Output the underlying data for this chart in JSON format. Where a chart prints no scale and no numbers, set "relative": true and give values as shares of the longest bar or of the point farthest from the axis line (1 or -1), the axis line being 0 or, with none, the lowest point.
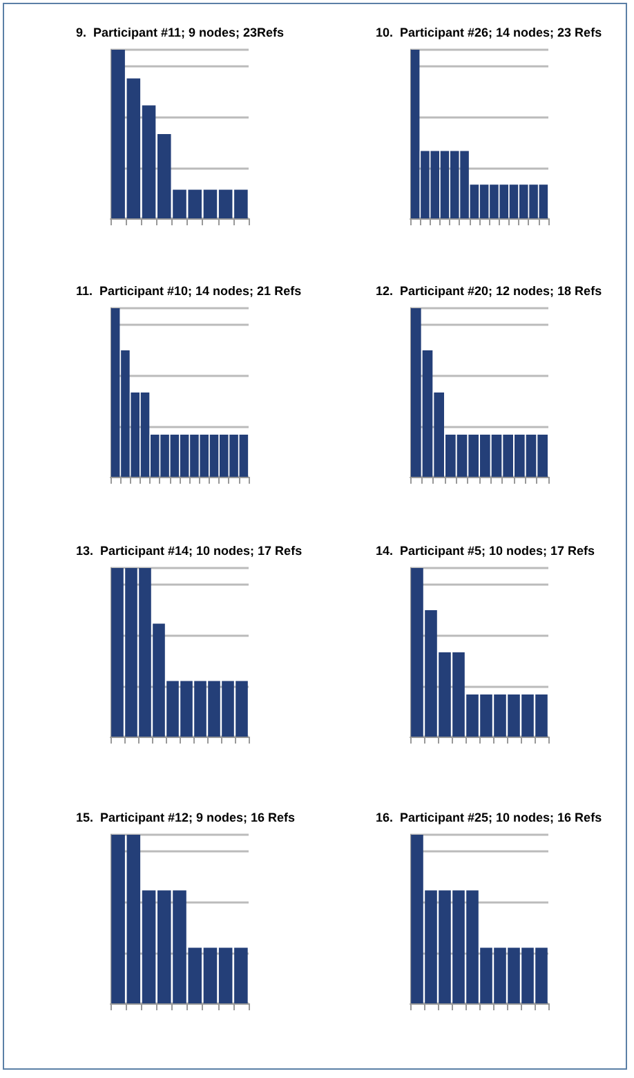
{
  "chart_data": [
    {
      "type": "bar",
      "title": "9.  Participant #11; 9 nodes; 23Refs",
      "relative": true,
      "grid": "y",
      "color": "#243f78",
      "categories": [
        null,
        null,
        null,
        null,
        null,
        null,
        null,
        null,
        null
      ],
      "values": [
        1,
        0.83,
        0.67,
        0.5,
        0.17,
        0.17,
        0.17,
        0.17,
        0.17
      ]
    },
    {
      "type": "bar",
      "title": "10.  Participant #26; 14 nodes; 23 Refs",
      "relative": true,
      "grid": "y",
      "color": "#243f78",
      "categories": [
        null,
        null,
        null,
        null,
        null,
        null,
        null,
        null,
        null,
        null,
        null,
        null,
        null,
        null
      ],
      "values": [
        1,
        0.4,
        0.4,
        0.4,
        0.4,
        0.4,
        0.2,
        0.2,
        0.2,
        0.2,
        0.2,
        0.2,
        0.2,
        0.2
      ]
    },
    {
      "type": "bar",
      "title": "11.  Participant #10; 14 nodes; 21 Refs",
      "relative": true,
      "grid": "y",
      "color": "#243f78",
      "categories": [
        null,
        null,
        null,
        null,
        null,
        null,
        null,
        null,
        null,
        null,
        null,
        null,
        null,
        null
      ],
      "values": [
        1,
        0.75,
        0.5,
        0.5,
        0.25,
        0.25,
        0.25,
        0.25,
        0.25,
        0.25,
        0.25,
        0.25,
        0.25,
        0.25
      ]
    },
    {
      "type": "bar",
      "title": "12.  Participant #20; 12 nodes; 18 Refs",
      "relative": true,
      "grid": "y",
      "color": "#243f78",
      "categories": [
        null,
        null,
        null,
        null,
        null,
        null,
        null,
        null,
        null,
        null,
        null,
        null
      ],
      "values": [
        1,
        0.75,
        0.5,
        0.25,
        0.25,
        0.25,
        0.25,
        0.25,
        0.25,
        0.25,
        0.25,
        0.25
      ]
    },
    {
      "type": "bar",
      "title": "13.  Participant #14; 10 nodes; 17 Refs",
      "relative": true,
      "grid": "y",
      "color": "#243f78",
      "categories": [
        null,
        null,
        null,
        null,
        null,
        null,
        null,
        null,
        null,
        null
      ],
      "values": [
        1,
        1,
        1,
        0.67,
        0.33,
        0.33,
        0.33,
        0.33,
        0.33,
        0.33
      ]
    },
    {
      "type": "bar",
      "title": "14.  Participant #5; 10 nodes; 17 Refs",
      "relative": true,
      "grid": "y",
      "color": "#243f78",
      "categories": [
        null,
        null,
        null,
        null,
        null,
        null,
        null,
        null,
        null,
        null
      ],
      "values": [
        1,
        0.75,
        0.5,
        0.5,
        0.25,
        0.25,
        0.25,
        0.25,
        0.25,
        0.25
      ]
    },
    {
      "type": "bar",
      "title": "15.  Participant #12; 9 nodes; 16 Refs",
      "relative": true,
      "grid": "y",
      "color": "#243f78",
      "categories": [
        null,
        null,
        null,
        null,
        null,
        null,
        null,
        null,
        null
      ],
      "values": [
        1,
        1,
        0.67,
        0.67,
        0.67,
        0.33,
        0.33,
        0.33,
        0.33
      ]
    },
    {
      "type": "bar",
      "title": "16.  Participant #25; 10 nodes; 16 Refs",
      "relative": true,
      "grid": "y",
      "color": "#243f78",
      "categories": [
        null,
        null,
        null,
        null,
        null,
        null,
        null,
        null,
        null,
        null
      ],
      "values": [
        1,
        0.67,
        0.67,
        0.67,
        0.67,
        0.33,
        0.33,
        0.33,
        0.33,
        0.33
      ]
    }
  ]
}
